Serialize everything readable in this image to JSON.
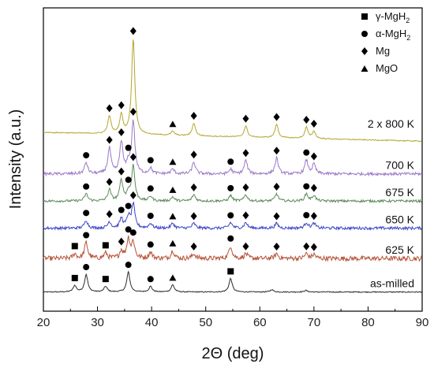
{
  "chart_data": {
    "type": "line",
    "xlabel": "2Θ (deg)",
    "ylabel": "Intensity (a.u.)",
    "xlim": [
      20,
      90
    ],
    "xticks": [
      20,
      30,
      40,
      50,
      60,
      70,
      80,
      90
    ],
    "grid": false,
    "legend_position": "top-right",
    "legend": [
      {
        "symbol": "square",
        "label": "γ-MgH",
        "sub": "2"
      },
      {
        "symbol": "circle",
        "label": "α-MgH",
        "sub": "2"
      },
      {
        "symbol": "diamond",
        "label": "Mg",
        "sub": ""
      },
      {
        "symbol": "triangle",
        "label": "MgO",
        "sub": ""
      }
    ],
    "series": [
      {
        "name": "as-milled",
        "color": "#2b2b2b",
        "baseline": 0.0,
        "noise": 0.06,
        "peaks": [
          [
            25.8,
            0.4
          ],
          [
            27.9,
            1.1
          ],
          [
            31.5,
            0.35
          ],
          [
            35.7,
            1.25
          ],
          [
            39.8,
            0.35
          ],
          [
            43.9,
            0.45
          ],
          [
            54.6,
            0.85
          ],
          [
            62.2,
            0.15
          ],
          [
            68.5,
            0.1
          ]
        ],
        "markers": [
          {
            "x": 25.8,
            "symbol": "square"
          },
          {
            "x": 27.9,
            "symbol": "circle"
          },
          {
            "x": 31.5,
            "symbol": "square"
          },
          {
            "x": 35.7,
            "symbol": "circle"
          },
          {
            "x": 39.8,
            "symbol": "circle"
          },
          {
            "x": 43.9,
            "symbol": "triangle"
          },
          {
            "x": 54.6,
            "symbol": "square"
          }
        ]
      },
      {
        "name": "625 K",
        "color": "#b5543a",
        "baseline": 2.1,
        "noise": 0.3,
        "peaks": [
          [
            25.8,
            0.3
          ],
          [
            27.9,
            1.0
          ],
          [
            31.5,
            0.35
          ],
          [
            34.4,
            0.5
          ],
          [
            35.7,
            1.2
          ],
          [
            36.6,
            1.0
          ],
          [
            39.8,
            0.4
          ],
          [
            43.9,
            0.5
          ],
          [
            47.8,
            0.3
          ],
          [
            54.6,
            0.8
          ],
          [
            57.4,
            0.3
          ],
          [
            63.1,
            0.3
          ],
          [
            68.6,
            0.3
          ],
          [
            70.0,
            0.25
          ]
        ],
        "markers": [
          {
            "x": 25.8,
            "symbol": "square"
          },
          {
            "x": 27.9,
            "symbol": "circle"
          },
          {
            "x": 31.5,
            "symbol": "square"
          },
          {
            "x": 34.4,
            "symbol": "diamond"
          },
          {
            "x": 35.7,
            "symbol": "circle"
          },
          {
            "x": 36.6,
            "symbol": "circle"
          },
          {
            "x": 39.8,
            "symbol": "circle"
          },
          {
            "x": 43.9,
            "symbol": "triangle"
          },
          {
            "x": 47.8,
            "symbol": "diamond"
          },
          {
            "x": 54.6,
            "symbol": "circle"
          },
          {
            "x": 57.4,
            "symbol": "diamond"
          },
          {
            "x": 63.1,
            "symbol": "diamond"
          },
          {
            "x": 68.6,
            "symbol": "diamond"
          },
          {
            "x": 70.0,
            "symbol": "diamond"
          }
        ]
      },
      {
        "name": "650 K",
        "color": "#3a45c8",
        "baseline": 4.0,
        "noise": 0.18,
        "peaks": [
          [
            27.9,
            0.5
          ],
          [
            32.2,
            0.4
          ],
          [
            34.4,
            0.6
          ],
          [
            35.7,
            0.7
          ],
          [
            36.6,
            1.5
          ],
          [
            39.8,
            0.3
          ],
          [
            43.9,
            0.3
          ],
          [
            47.8,
            0.3
          ],
          [
            54.6,
            0.35
          ],
          [
            57.4,
            0.35
          ],
          [
            63.1,
            0.3
          ],
          [
            68.6,
            0.35
          ],
          [
            70.0,
            0.3
          ]
        ],
        "markers": [
          {
            "x": 27.9,
            "symbol": "circle"
          },
          {
            "x": 32.2,
            "symbol": "diamond"
          },
          {
            "x": 34.4,
            "symbol": "circle"
          },
          {
            "x": 35.7,
            "symbol": "circle"
          },
          {
            "x": 36.6,
            "symbol": "diamond"
          },
          {
            "x": 39.8,
            "symbol": "circle"
          },
          {
            "x": 43.9,
            "symbol": "triangle"
          },
          {
            "x": 47.8,
            "symbol": "diamond"
          },
          {
            "x": 54.6,
            "symbol": "circle"
          },
          {
            "x": 57.4,
            "symbol": "diamond"
          },
          {
            "x": 63.1,
            "symbol": "diamond"
          },
          {
            "x": 68.6,
            "symbol": "circle"
          },
          {
            "x": 70.0,
            "symbol": "diamond"
          }
        ]
      },
      {
        "name": "675 K",
        "color": "#5e8a5a",
        "baseline": 5.7,
        "noise": 0.15,
        "peaks": [
          [
            27.9,
            0.45
          ],
          [
            32.2,
            0.7
          ],
          [
            34.4,
            1.3
          ],
          [
            35.7,
            0.5
          ],
          [
            36.6,
            2.2
          ],
          [
            39.8,
            0.3
          ],
          [
            43.9,
            0.25
          ],
          [
            47.8,
            0.4
          ],
          [
            54.6,
            0.35
          ],
          [
            57.4,
            0.4
          ],
          [
            63.1,
            0.45
          ],
          [
            68.6,
            0.45
          ],
          [
            70.0,
            0.35
          ]
        ],
        "markers": [
          {
            "x": 27.9,
            "symbol": "circle"
          },
          {
            "x": 32.2,
            "symbol": "diamond"
          },
          {
            "x": 34.4,
            "symbol": "diamond"
          },
          {
            "x": 35.7,
            "symbol": "circle"
          },
          {
            "x": 36.6,
            "symbol": "diamond"
          },
          {
            "x": 39.8,
            "symbol": "circle"
          },
          {
            "x": 43.9,
            "symbol": "triangle"
          },
          {
            "x": 47.8,
            "symbol": "diamond"
          },
          {
            "x": 54.6,
            "symbol": "circle"
          },
          {
            "x": 57.4,
            "symbol": "diamond"
          },
          {
            "x": 63.1,
            "symbol": "diamond"
          },
          {
            "x": 68.6,
            "symbol": "circle"
          },
          {
            "x": 70.0,
            "symbol": "diamond"
          }
        ]
      },
      {
        "name": "700 K",
        "color": "#9b78c8",
        "baseline": 7.4,
        "noise": 0.18,
        "peaks": [
          [
            27.9,
            0.7
          ],
          [
            32.2,
            1.6
          ],
          [
            34.4,
            2.0
          ],
          [
            35.7,
            0.6
          ],
          [
            36.6,
            3.3
          ],
          [
            39.8,
            0.35
          ],
          [
            43.9,
            0.3
          ],
          [
            47.8,
            0.75
          ],
          [
            54.6,
            0.3
          ],
          [
            57.4,
            0.85
          ],
          [
            63.1,
            1.0
          ],
          [
            68.6,
            0.85
          ],
          [
            70.0,
            0.6
          ]
        ],
        "markers": [
          {
            "x": 27.9,
            "symbol": "circle"
          },
          {
            "x": 32.2,
            "symbol": "diamond"
          },
          {
            "x": 34.4,
            "symbol": "diamond"
          },
          {
            "x": 35.7,
            "symbol": "circle"
          },
          {
            "x": 36.6,
            "symbol": "diamond"
          },
          {
            "x": 39.8,
            "symbol": "circle"
          },
          {
            "x": 43.9,
            "symbol": "triangle"
          },
          {
            "x": 47.8,
            "symbol": "diamond"
          },
          {
            "x": 54.6,
            "symbol": "circle"
          },
          {
            "x": 57.4,
            "symbol": "diamond"
          },
          {
            "x": 63.1,
            "symbol": "diamond"
          },
          {
            "x": 68.6,
            "symbol": "circle"
          },
          {
            "x": 70.0,
            "symbol": "diamond"
          }
        ]
      },
      {
        "name": "2 x 800 K",
        "color": "#b5a52f",
        "baseline": 10.0,
        "noise": 0.06,
        "slope": -0.55,
        "peaks": [
          [
            32.2,
            1.1
          ],
          [
            34.4,
            1.2
          ],
          [
            36.6,
            6.0
          ],
          [
            43.9,
            0.25
          ],
          [
            47.8,
            0.8
          ],
          [
            57.4,
            0.7
          ],
          [
            63.1,
            0.85
          ],
          [
            68.6,
            0.7
          ],
          [
            70.0,
            0.45
          ]
        ],
        "markers": [
          {
            "x": 32.2,
            "symbol": "diamond"
          },
          {
            "x": 34.4,
            "symbol": "diamond"
          },
          {
            "x": 36.6,
            "symbol": "diamond"
          },
          {
            "x": 43.9,
            "symbol": "triangle"
          },
          {
            "x": 47.8,
            "symbol": "diamond"
          },
          {
            "x": 57.4,
            "symbol": "diamond"
          },
          {
            "x": 63.1,
            "symbol": "diamond"
          },
          {
            "x": 68.6,
            "symbol": "diamond"
          },
          {
            "x": 70.0,
            "symbol": "diamond"
          }
        ]
      }
    ]
  }
}
